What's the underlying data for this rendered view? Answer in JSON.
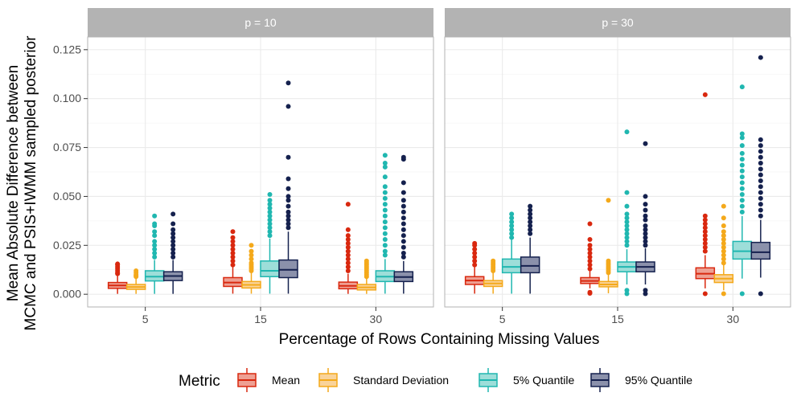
{
  "chart_data": {
    "type": "boxplot",
    "facet_var": "p",
    "panels": [
      {
        "label": "p = 10",
        "groups": [
          {
            "category": "5",
            "boxes": [
              {
                "metric": "Mean",
                "min": 0.0002,
                "q1": 0.003,
                "median": 0.0045,
                "q3": 0.006,
                "max": 0.01,
                "outliers": [
                  0.0105,
                  0.011,
                  0.012,
                  0.013,
                  0.014,
                  0.015,
                  0.0155
                ]
              },
              {
                "metric": "Standard Deviation",
                "min": 0.0002,
                "q1": 0.0025,
                "median": 0.0037,
                "q3": 0.005,
                "max": 0.0085,
                "outliers": [
                  0.009,
                  0.0095,
                  0.01,
                  0.011,
                  0.012
                ]
              },
              {
                "metric": "5% Quantile",
                "min": 0.0002,
                "q1": 0.0068,
                "median": 0.009,
                "q3": 0.012,
                "max": 0.0175,
                "outliers": [
                  0.019,
                  0.021,
                  0.023,
                  0.025,
                  0.027,
                  0.03,
                  0.032,
                  0.035,
                  0.036,
                  0.04
                ]
              },
              {
                "metric": "95% Quantile",
                "min": 0.0002,
                "q1": 0.007,
                "median": 0.0093,
                "q3": 0.0115,
                "max": 0.0175,
                "outliers": [
                  0.019,
                  0.021,
                  0.023,
                  0.025,
                  0.027,
                  0.029,
                  0.031,
                  0.033,
                  0.036,
                  0.041
                ]
              }
            ]
          },
          {
            "category": "15",
            "boxes": [
              {
                "metric": "Mean",
                "min": 0.0003,
                "q1": 0.004,
                "median": 0.006,
                "q3": 0.0085,
                "max": 0.014,
                "outliers": [
                  0.015,
                  0.017,
                  0.019,
                  0.021,
                  0.023,
                  0.025,
                  0.027,
                  0.029,
                  0.032
                ]
              },
              {
                "metric": "Standard Deviation",
                "min": 0.0003,
                "q1": 0.0032,
                "median": 0.0048,
                "q3": 0.0065,
                "max": 0.011,
                "outliers": [
                  0.012,
                  0.013,
                  0.014,
                  0.015,
                  0.016,
                  0.018,
                  0.02,
                  0.022,
                  0.025
                ]
              },
              {
                "metric": "5% Quantile",
                "min": 0.0003,
                "q1": 0.009,
                "median": 0.012,
                "q3": 0.017,
                "max": 0.0285,
                "outliers": [
                  0.03,
                  0.032,
                  0.034,
                  0.036,
                  0.038,
                  0.04,
                  0.042,
                  0.044,
                  0.046,
                  0.048,
                  0.051
                ]
              },
              {
                "metric": "95% Quantile",
                "min": 0.0003,
                "q1": 0.0085,
                "median": 0.0125,
                "q3": 0.0175,
                "max": 0.032,
                "outliers": [
                  0.034,
                  0.036,
                  0.038,
                  0.04,
                  0.042,
                  0.045,
                  0.048,
                  0.05,
                  0.054,
                  0.059,
                  0.07,
                  0.096,
                  0.108
                ]
              }
            ]
          },
          {
            "category": "30",
            "boxes": [
              {
                "metric": "Mean",
                "min": 0.0002,
                "q1": 0.0028,
                "median": 0.0043,
                "q3": 0.0062,
                "max": 0.0105,
                "outliers": [
                  0.012,
                  0.014,
                  0.016,
                  0.018,
                  0.02,
                  0.022,
                  0.024,
                  0.026,
                  0.028,
                  0.03,
                  0.033,
                  0.046
                ]
              },
              {
                "metric": "Standard Deviation",
                "min": 0.0002,
                "q1": 0.0022,
                "median": 0.0035,
                "q3": 0.005,
                "max": 0.008,
                "outliers": [
                  0.009,
                  0.01,
                  0.011,
                  0.012,
                  0.013,
                  0.014,
                  0.015,
                  0.016,
                  0.017
                ]
              },
              {
                "metric": "5% Quantile",
                "min": 0.0003,
                "q1": 0.0065,
                "median": 0.009,
                "q3": 0.012,
                "max": 0.018,
                "outliers": [
                  0.02,
                  0.022,
                  0.025,
                  0.028,
                  0.031,
                  0.034,
                  0.037,
                  0.04,
                  0.043,
                  0.046,
                  0.049,
                  0.052,
                  0.055,
                  0.06,
                  0.065,
                  0.067,
                  0.071
                ]
              },
              {
                "metric": "95% Quantile",
                "min": 0.0003,
                "q1": 0.0065,
                "median": 0.0088,
                "q3": 0.0115,
                "max": 0.017,
                "outliers": [
                  0.019,
                  0.021,
                  0.024,
                  0.027,
                  0.03,
                  0.033,
                  0.036,
                  0.039,
                  0.042,
                  0.045,
                  0.048,
                  0.052,
                  0.057,
                  0.069,
                  0.07
                ]
              }
            ]
          }
        ]
      },
      {
        "label": "p = 30",
        "groups": [
          {
            "category": "5",
            "boxes": [
              {
                "metric": "Mean",
                "min": 0.0003,
                "q1": 0.005,
                "median": 0.007,
                "q3": 0.009,
                "max": 0.014,
                "outliers": [
                  0.015,
                  0.017,
                  0.019,
                  0.021,
                  0.023,
                  0.025,
                  0.026
                ]
              },
              {
                "metric": "Standard Deviation",
                "min": 0.0003,
                "q1": 0.004,
                "median": 0.0055,
                "q3": 0.007,
                "max": 0.011,
                "outliers": [
                  0.012,
                  0.013,
                  0.014,
                  0.015,
                  0.016,
                  0.017
                ]
              },
              {
                "metric": "5% Quantile",
                "min": 0.0003,
                "q1": 0.011,
                "median": 0.014,
                "q3": 0.018,
                "max": 0.028,
                "outliers": [
                  0.029,
                  0.031,
                  0.033,
                  0.035,
                  0.037,
                  0.039,
                  0.041
                ]
              },
              {
                "metric": "95% Quantile",
                "min": 0.0003,
                "q1": 0.011,
                "median": 0.0145,
                "q3": 0.019,
                "max": 0.029,
                "outliers": [
                  0.031,
                  0.033,
                  0.035,
                  0.037,
                  0.039,
                  0.041,
                  0.043,
                  0.045
                ]
              }
            ]
          },
          {
            "category": "15",
            "boxes": [
              {
                "metric": "Mean",
                "min": 0.003,
                "q1": 0.0055,
                "median": 0.0068,
                "q3": 0.0085,
                "max": 0.012,
                "outliers": [
                  0.0005,
                  0.001,
                  0.013,
                  0.015,
                  0.017,
                  0.019,
                  0.021,
                  0.023,
                  0.025,
                  0.028,
                  0.036
                ]
              },
              {
                "metric": "Standard Deviation",
                "min": 0.0005,
                "q1": 0.0038,
                "median": 0.005,
                "q3": 0.0065,
                "max": 0.01,
                "outliers": [
                  0.011,
                  0.012,
                  0.013,
                  0.014,
                  0.015,
                  0.016,
                  0.017,
                  0.048
                ]
              },
              {
                "metric": "5% Quantile",
                "min": 0.005,
                "q1": 0.0115,
                "median": 0.014,
                "q3": 0.0165,
                "max": 0.023,
                "outliers": [
                  0.0003,
                  0.002,
                  0.025,
                  0.027,
                  0.029,
                  0.031,
                  0.033,
                  0.035,
                  0.037,
                  0.039,
                  0.041,
                  0.045,
                  0.052,
                  0.083
                ]
              },
              {
                "metric": "95% Quantile",
                "min": 0.005,
                "q1": 0.0115,
                "median": 0.014,
                "q3": 0.0165,
                "max": 0.0235,
                "outliers": [
                  0.0003,
                  0.002,
                  0.025,
                  0.027,
                  0.029,
                  0.031,
                  0.033,
                  0.035,
                  0.038,
                  0.04,
                  0.043,
                  0.046,
                  0.05,
                  0.077
                ]
              }
            ]
          },
          {
            "category": "30",
            "boxes": [
              {
                "metric": "Mean",
                "min": 0.003,
                "q1": 0.008,
                "median": 0.0105,
                "q3": 0.0135,
                "max": 0.02,
                "outliers": [
                  0.0003,
                  0.022,
                  0.024,
                  0.026,
                  0.028,
                  0.03,
                  0.032,
                  0.034,
                  0.036,
                  0.038,
                  0.04,
                  0.102
                ]
              },
              {
                "metric": "Standard Deviation",
                "min": 0.002,
                "q1": 0.006,
                "median": 0.008,
                "q3": 0.01,
                "max": 0.015,
                "outliers": [
                  0.0003,
                  0.016,
                  0.018,
                  0.02,
                  0.022,
                  0.024,
                  0.026,
                  0.028,
                  0.03,
                  0.032,
                  0.035,
                  0.039,
                  0.045
                ]
              },
              {
                "metric": "5% Quantile",
                "min": 0.008,
                "q1": 0.018,
                "median": 0.022,
                "q3": 0.027,
                "max": 0.04,
                "outliers": [
                  0.0003,
                  0.042,
                  0.045,
                  0.048,
                  0.051,
                  0.054,
                  0.057,
                  0.06,
                  0.063,
                  0.066,
                  0.069,
                  0.072,
                  0.076,
                  0.08,
                  0.082,
                  0.106
                ]
              },
              {
                "metric": "95% Quantile",
                "min": 0.0085,
                "q1": 0.018,
                "median": 0.0215,
                "q3": 0.0265,
                "max": 0.038,
                "outliers": [
                  0.0003,
                  0.04,
                  0.043,
                  0.046,
                  0.049,
                  0.052,
                  0.055,
                  0.058,
                  0.061,
                  0.064,
                  0.067,
                  0.07,
                  0.073,
                  0.076,
                  0.079,
                  0.121
                ]
              }
            ]
          }
        ]
      }
    ],
    "series": [
      {
        "name": "Mean",
        "line_color": "#d9280f",
        "fill_color": "#eea093"
      },
      {
        "name": "Standard Deviation",
        "line_color": "#f4a91b",
        "fill_color": "#f9d39a"
      },
      {
        "name": "5% Quantile",
        "line_color": "#20b7b0",
        "fill_color": "#9dded9"
      },
      {
        "name": "95% Quantile",
        "line_color": "#15214e",
        "fill_color": "#8b91ab"
      }
    ],
    "y_ticks": [
      {
        "value": 0.0,
        "label": "0.000"
      },
      {
        "value": 0.025,
        "label": "0.025"
      },
      {
        "value": 0.05,
        "label": "0.050"
      },
      {
        "value": 0.075,
        "label": "0.075"
      },
      {
        "value": 0.1,
        "label": "0.100"
      },
      {
        "value": 0.125,
        "label": "0.125"
      }
    ],
    "ylim": [
      -0.0065,
      0.1315
    ],
    "xlabel": "Percentage of Rows Containing Missing Values",
    "ylabel": [
      "Mean Absolute Difference between",
      "MCMC and PSIS+IWMM sampled posterior"
    ],
    "legend": {
      "title": "Metric",
      "position": "bottom"
    },
    "grid": true
  }
}
